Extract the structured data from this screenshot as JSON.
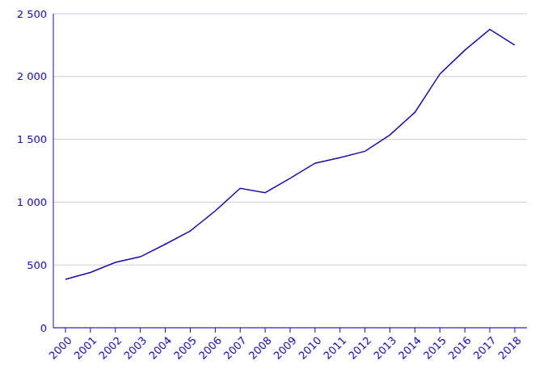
{
  "chart_data": {
    "type": "line",
    "categories": [
      "2000",
      "2001",
      "2002",
      "2003",
      "2004",
      "2005",
      "2006",
      "2007",
      "2008",
      "2009",
      "2010",
      "2011",
      "2012",
      "2013",
      "2014",
      "2015",
      "2016",
      "2017",
      "2018"
    ],
    "values": [
      385,
      440,
      520,
      565,
      665,
      770,
      930,
      1110,
      1075,
      1190,
      1310,
      1355,
      1405,
      1535,
      1715,
      2020,
      2210,
      2375,
      2250
    ],
    "color": "#1e0aa8",
    "ylim": [
      0,
      2500
    ],
    "yticks": [
      0,
      500,
      {
        "value": 1000,
        "label": "1 000"
      },
      {
        "value": 1500,
        "label": "1 500"
      },
      {
        "value": 2000,
        "label": "2 000"
      },
      {
        "value": 2500,
        "label": "2 500"
      }
    ],
    "grid": true
  }
}
